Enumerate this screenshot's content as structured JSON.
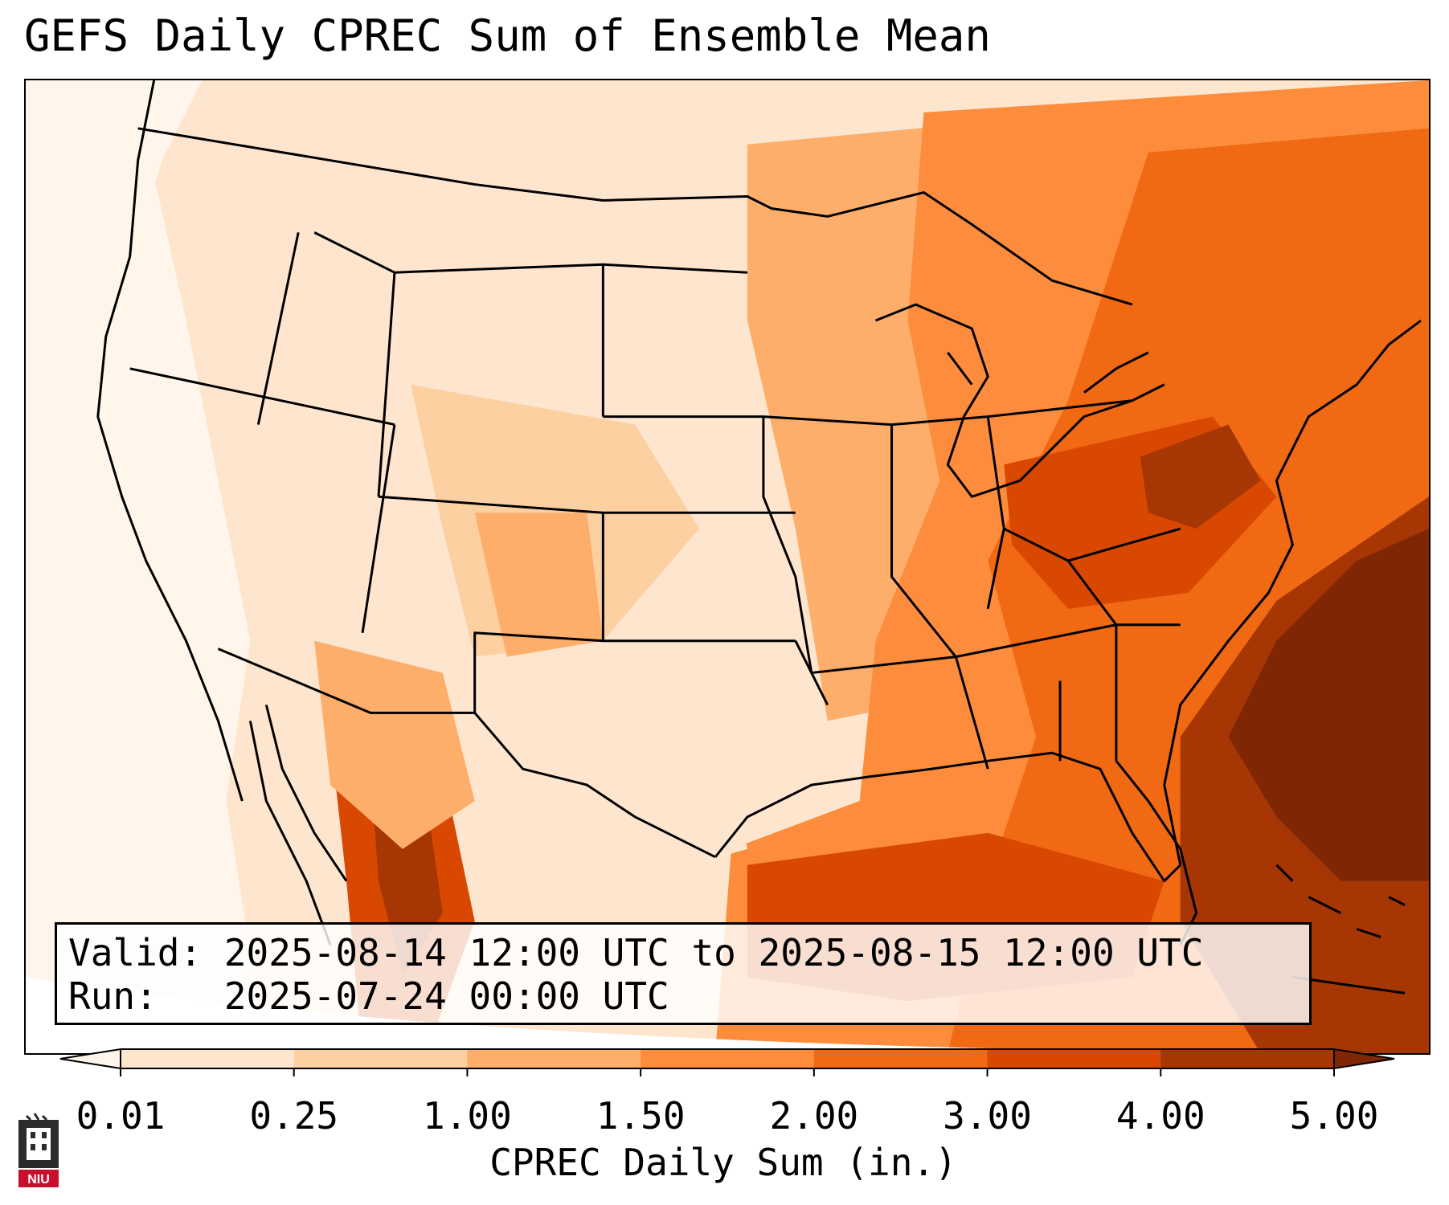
{
  "title": "GEFS Daily CPREC Sum of Ensemble Mean",
  "info": {
    "valid": "Valid: 2025-08-14 12:00 UTC to 2025-08-15 12:00 UTC",
    "run": "Run:   2025-07-24 00:00 UTC"
  },
  "colorbar": {
    "label": "CPREC Daily Sum (in.)",
    "ticks": [
      "0.01",
      "0.25",
      "1.00",
      "1.50",
      "2.00",
      "3.00",
      "4.00",
      "5.00"
    ],
    "colors": [
      "#fff5eb",
      "#fee6ce",
      "#fdd0a2",
      "#fdae6b",
      "#fd8d3c",
      "#f16913",
      "#d94801",
      "#a63603",
      "#7f2704"
    ]
  },
  "logo": {
    "text": "NIU"
  },
  "colors": {
    "land_lines": "#000000",
    "background": "#ffffff"
  }
}
